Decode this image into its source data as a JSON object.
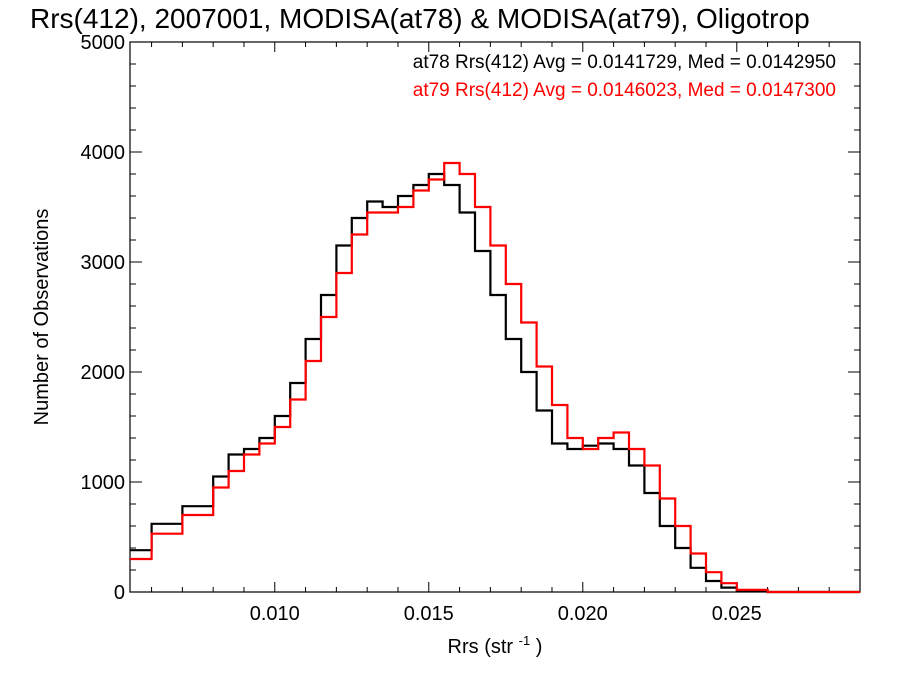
{
  "chart_data": {
    "type": "line",
    "title": "Rrs(412), 2007001, MODISA(at78) & MODISA(at79), Oligotrop",
    "xlabel": "Rrs (str",
    "xlabel_sup": "-1",
    "xlabel_close": ")",
    "ylabel": "Number of Observations",
    "xlim": [
      0.0053,
      0.029
    ],
    "ylim": [
      0,
      5000
    ],
    "xticks": [
      0.01,
      0.015,
      0.02,
      0.025
    ],
    "xtick_labels": [
      "0.010",
      "0.015",
      "0.020",
      "0.025"
    ],
    "yticks": [
      0,
      1000,
      2000,
      3000,
      4000,
      5000
    ],
    "ytick_labels": [
      "0",
      "1000",
      "2000",
      "3000",
      "4000",
      "5000"
    ],
    "grid": false,
    "legend_position": "top-right",
    "series": [
      {
        "name": "at78",
        "color": "#000000",
        "legend_text": "at78 Rrs(412) Avg = 0.0141729, Med = 0.0142950",
        "x": [
          0.0053,
          0.006,
          0.007,
          0.008,
          0.0085,
          0.009,
          0.0095,
          0.01,
          0.0105,
          0.011,
          0.0115,
          0.012,
          0.0125,
          0.013,
          0.0135,
          0.014,
          0.0145,
          0.015,
          0.0155,
          0.016,
          0.0165,
          0.017,
          0.0175,
          0.018,
          0.0185,
          0.019,
          0.0195,
          0.02,
          0.0205,
          0.021,
          0.0215,
          0.022,
          0.0225,
          0.023,
          0.0235,
          0.024,
          0.0245,
          0.025,
          0.026,
          0.027,
          0.029
        ],
        "values": [
          380,
          620,
          780,
          1050,
          1250,
          1300,
          1400,
          1600,
          1900,
          2300,
          2700,
          3150,
          3400,
          3550,
          3500,
          3600,
          3700,
          3800,
          3700,
          3450,
          3100,
          2700,
          2300,
          2000,
          1650,
          1350,
          1300,
          1330,
          1350,
          1300,
          1150,
          900,
          600,
          400,
          220,
          100,
          40,
          10,
          0,
          0,
          0
        ]
      },
      {
        "name": "at79",
        "color": "#ff0000",
        "legend_text": "at79 Rrs(412) Avg = 0.0146023, Med = 0.0147300",
        "x": [
          0.0053,
          0.006,
          0.007,
          0.008,
          0.0085,
          0.009,
          0.0095,
          0.01,
          0.0105,
          0.011,
          0.0115,
          0.012,
          0.0125,
          0.013,
          0.0135,
          0.014,
          0.0145,
          0.015,
          0.0155,
          0.016,
          0.0165,
          0.017,
          0.0175,
          0.018,
          0.0185,
          0.019,
          0.0195,
          0.02,
          0.0205,
          0.021,
          0.0215,
          0.022,
          0.0225,
          0.023,
          0.0235,
          0.024,
          0.0245,
          0.025,
          0.026,
          0.027,
          0.029
        ],
        "values": [
          300,
          530,
          700,
          950,
          1100,
          1250,
          1350,
          1500,
          1750,
          2100,
          2500,
          2900,
          3250,
          3450,
          3450,
          3500,
          3650,
          3750,
          3900,
          3800,
          3500,
          3150,
          2800,
          2450,
          2050,
          1700,
          1400,
          1300,
          1400,
          1450,
          1300,
          1150,
          850,
          600,
          350,
          180,
          80,
          20,
          0,
          0,
          0
        ]
      }
    ]
  }
}
